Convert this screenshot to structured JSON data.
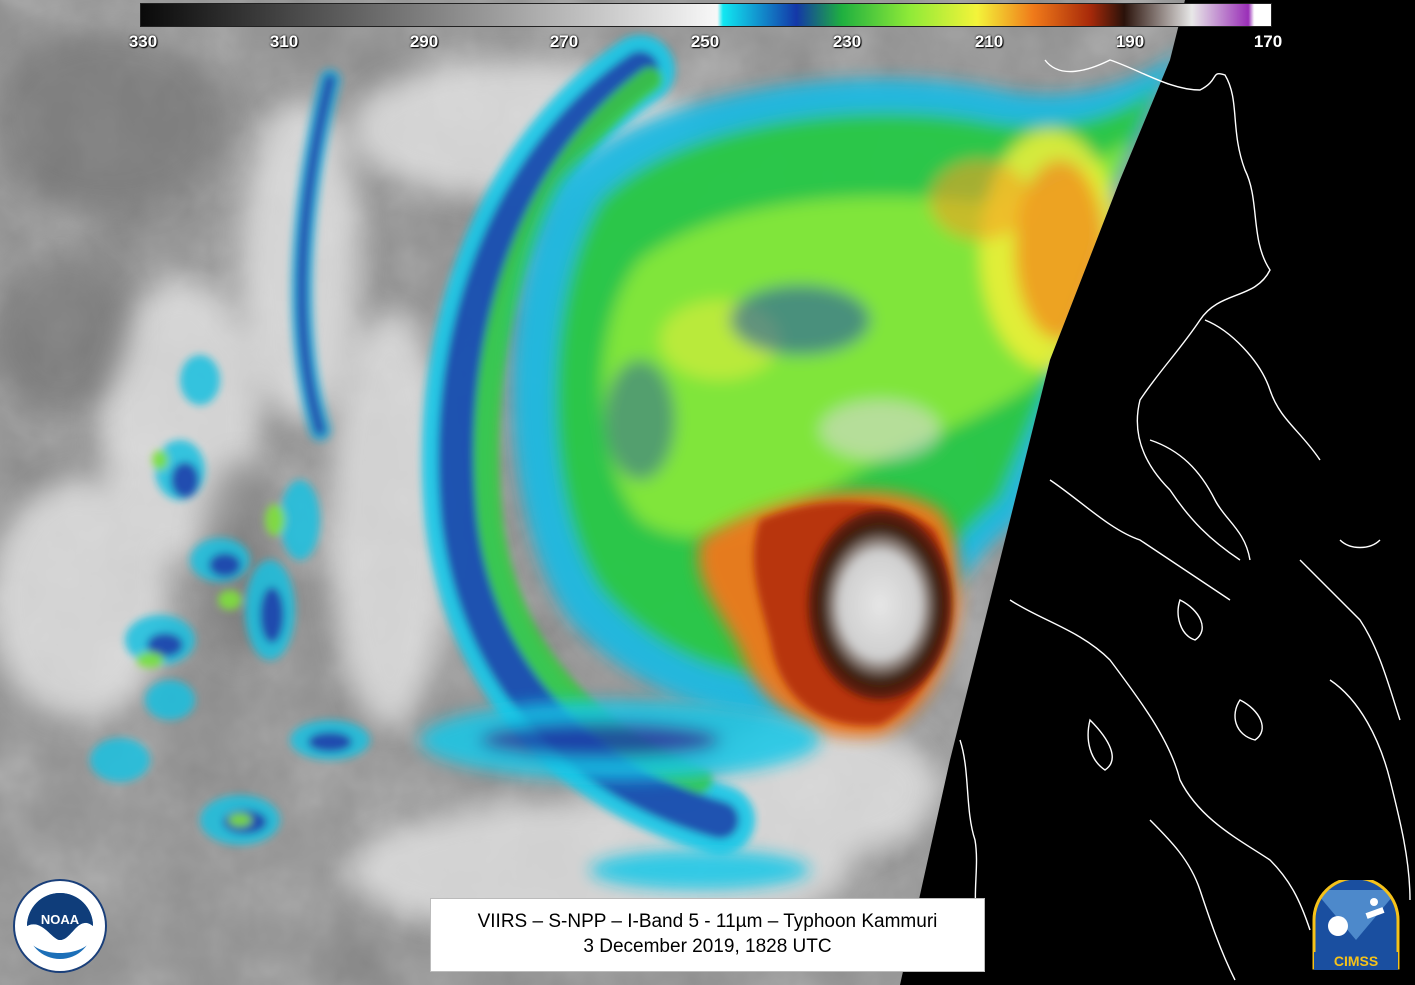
{
  "colorbar": {
    "ticks": [
      "330",
      "310",
      "290",
      "270",
      "250",
      "230",
      "210",
      "190",
      "170"
    ],
    "gradient_stops": [
      {
        "t": 0.0,
        "color": "#0a0a0a"
      },
      {
        "t": 0.51,
        "color": "#f8f8f8"
      },
      {
        "t": 0.515,
        "color": "#11e8f2"
      },
      {
        "t": 0.58,
        "color": "#1438a8"
      },
      {
        "t": 0.62,
        "color": "#1fb040"
      },
      {
        "t": 0.68,
        "color": "#8fea38"
      },
      {
        "t": 0.74,
        "color": "#f4f43a"
      },
      {
        "t": 0.79,
        "color": "#f07a1a"
      },
      {
        "t": 0.84,
        "color": "#a82a0a"
      },
      {
        "t": 0.87,
        "color": "#2a120a"
      },
      {
        "t": 0.93,
        "color": "#e8e8e8"
      },
      {
        "t": 0.98,
        "color": "#9a2fb8"
      },
      {
        "t": 0.985,
        "color": "#ffffff"
      },
      {
        "t": 1.0,
        "color": "#ffffff"
      }
    ]
  },
  "caption": {
    "line1": "VIIRS – S-NPP – I-Band 5 - 11µm – Typhoon Kammuri",
    "line2": "3 December 2019, 1828 UTC"
  },
  "logos": {
    "noaa_text": "NOAA",
    "noaa_ring_text": "NATIONAL OCEANIC AND ATMOSPHERIC ADMINISTRATION · U.S. DEPARTMENT OF COMMERCE",
    "cimss_text": "CIMSS"
  },
  "colors": {
    "background_gray": "#8a8a8a",
    "nodata_black": "#000000",
    "coastline_white": "#ffffff",
    "noaa_blue": "#1c6fb8",
    "cimss_yellow": "#f5c21a"
  }
}
